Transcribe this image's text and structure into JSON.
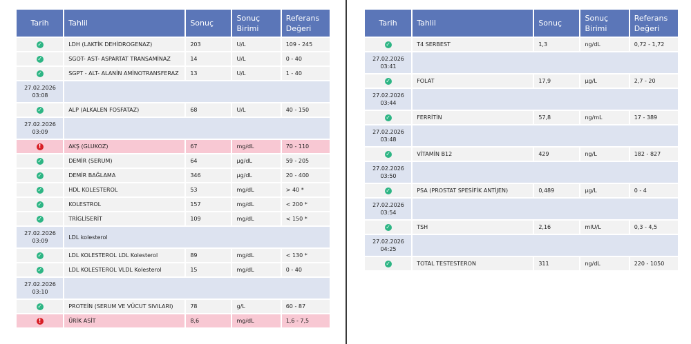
{
  "headers": {
    "date": "Tarih",
    "test": "Tahlil",
    "result": "Sonuç",
    "unit_line1": "Sonuç",
    "unit_line2": "Birimi",
    "ref_line1": "Referans",
    "ref_line2": "Değeri"
  },
  "icons": {
    "ok": "check-circle-icon",
    "alert": "exclamation-circle-icon",
    "ok_color": "#2db584",
    "alert_color": "#d81f26"
  },
  "left": [
    {
      "kind": "test",
      "status": "ok",
      "name": "LDH (LAKTİK DEHİDROGENAZ)",
      "result": "203",
      "unit": "U/L",
      "ref": "109 - 245"
    },
    {
      "kind": "test",
      "status": "ok",
      "name": "SGOT- AST- ASPARTAT TRANSAMİNAZ",
      "result": "14",
      "unit": "U/L",
      "ref": "0 - 40"
    },
    {
      "kind": "test",
      "status": "ok",
      "name": "SGPT - ALT- ALANİN AMİNOTRANSFERAZ",
      "result": "13",
      "unit": "U/L",
      "ref": "1 - 40"
    },
    {
      "kind": "time",
      "date": "27.02.2026",
      "time": "03:08",
      "note": ""
    },
    {
      "kind": "test",
      "status": "ok",
      "name": "ALP (ALKALEN FOSFATAZ)",
      "result": "68",
      "unit": "U/L",
      "ref": "40 - 150"
    },
    {
      "kind": "time",
      "date": "27.02.2026",
      "time": "03:09",
      "note": ""
    },
    {
      "kind": "test",
      "status": "alert",
      "name": "AKŞ (GLUKOZ)",
      "result": "67",
      "unit": "mg/dL",
      "ref": "70 - 110"
    },
    {
      "kind": "test",
      "status": "ok",
      "name": "DEMİR (SERUM)",
      "result": "64",
      "unit": "µg/dL",
      "ref": "59 - 205"
    },
    {
      "kind": "test",
      "status": "ok",
      "name": "DEMİR BAĞLAMA",
      "result": "346",
      "unit": "µg/dL",
      "ref": "20 - 400"
    },
    {
      "kind": "test",
      "status": "ok",
      "name": "HDL KOLESTEROL",
      "result": "53",
      "unit": "mg/dL",
      "ref": "> 40 *"
    },
    {
      "kind": "test",
      "status": "ok",
      "name": "KOLESTROL",
      "result": "157",
      "unit": "mg/dL",
      "ref": "< 200 *"
    },
    {
      "kind": "test",
      "status": "ok",
      "name": "TRİGLİSERİT",
      "result": "109",
      "unit": "mg/dL",
      "ref": "< 150 *"
    },
    {
      "kind": "time",
      "date": "27.02.2026",
      "time": "03:09",
      "note": "LDL kolesterol"
    },
    {
      "kind": "test",
      "status": "ok",
      "name": "LDL KOLESTEROL LDL Kolesterol",
      "result": "89",
      "unit": "mg/dL",
      "ref": "< 130 *"
    },
    {
      "kind": "test",
      "status": "ok",
      "name": "LDL KOLESTEROL VLDL Kolesterol",
      "result": "15",
      "unit": "mg/dL",
      "ref": "0 - 40"
    },
    {
      "kind": "time",
      "date": "27.02.2026",
      "time": "03:10",
      "note": ""
    },
    {
      "kind": "test",
      "status": "ok",
      "name": "PROTEİN (SERUM VE VÜCUT SIVILARI)",
      "result": "78",
      "unit": "g/L",
      "ref": "60 - 87"
    },
    {
      "kind": "test",
      "status": "alert",
      "name": "ÜRİK ASİT",
      "result": "8,6",
      "unit": "mg/dL",
      "ref": "1,6 - 7,5"
    }
  ],
  "right": [
    {
      "kind": "test",
      "status": "ok",
      "name": "T4 SERBEST",
      "result": "1,3",
      "unit": "ng/dL",
      "ref": "0,72 - 1,72"
    },
    {
      "kind": "time",
      "date": "27.02.2026",
      "time": "03:41",
      "note": ""
    },
    {
      "kind": "test",
      "status": "ok",
      "name": "FOLAT",
      "result": "17,9",
      "unit": "µg/L",
      "ref": "2,7 - 20"
    },
    {
      "kind": "time",
      "date": "27.02.2026",
      "time": "03:44",
      "note": ""
    },
    {
      "kind": "test",
      "status": "ok",
      "name": "FERRİTİN",
      "result": "57,8",
      "unit": "ng/mL",
      "ref": "17 - 389"
    },
    {
      "kind": "time",
      "date": "27.02.2026",
      "time": "03:48",
      "note": ""
    },
    {
      "kind": "test",
      "status": "ok",
      "name": "VİTAMİN B12",
      "result": "429",
      "unit": "ng/L",
      "ref": "182 - 827"
    },
    {
      "kind": "time",
      "date": "27.02.2026",
      "time": "03:50",
      "note": ""
    },
    {
      "kind": "test",
      "status": "ok",
      "name": "PSA (PROSTAT SPESİFİK ANTİJEN)",
      "result": "0,489",
      "unit": "µg/L",
      "ref": "0 - 4"
    },
    {
      "kind": "time",
      "date": "27.02.2026",
      "time": "03:54",
      "note": ""
    },
    {
      "kind": "test",
      "status": "ok",
      "name": "TSH",
      "result": "2,16",
      "unit": "mIU/L",
      "ref": "0,3 - 4,5"
    },
    {
      "kind": "time",
      "date": "27.02.2026",
      "time": "04:25",
      "note": ""
    },
    {
      "kind": "test",
      "status": "ok",
      "name": "TOTAL TESTESTERON",
      "result": "311",
      "unit": "ng/dL",
      "ref": "220 - 1050"
    }
  ]
}
